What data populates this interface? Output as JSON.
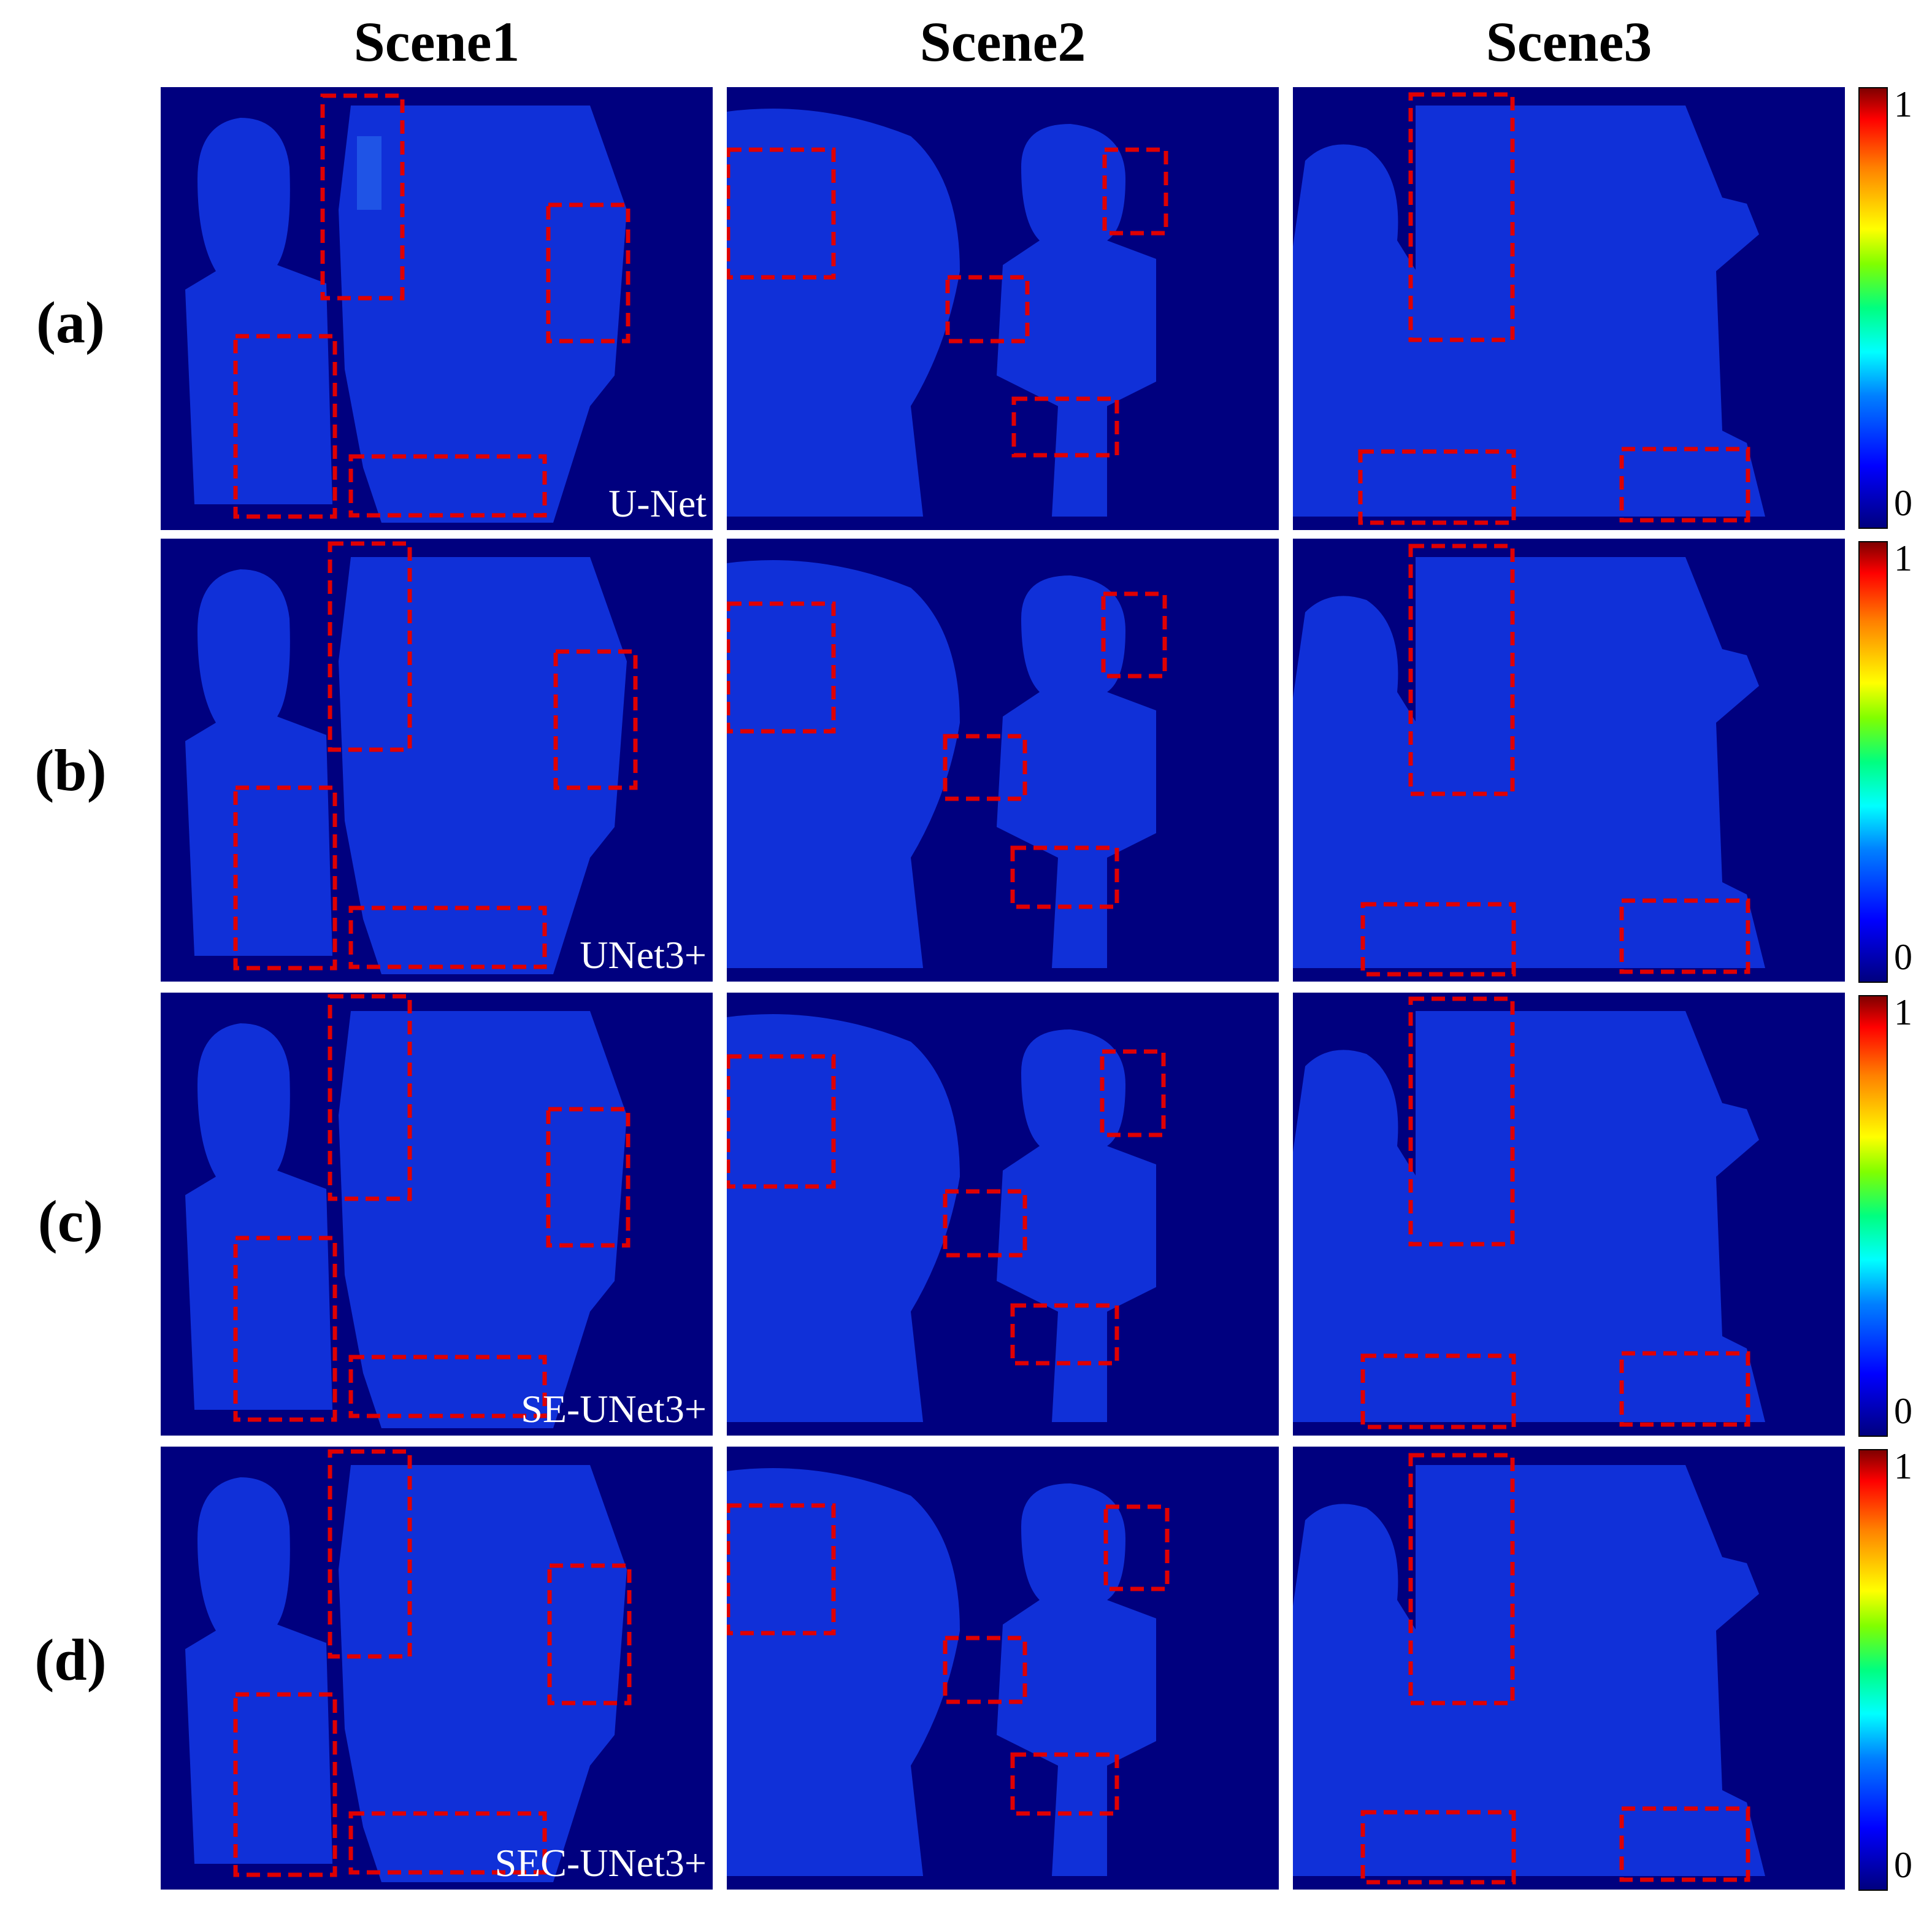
{
  "columns": [
    "Scene1",
    "Scene2",
    "Scene3"
  ],
  "rows": [
    {
      "label": "(a)",
      "method": "U-Net"
    },
    {
      "label": "(b)",
      "method": "UNet3+"
    },
    {
      "label": "(c)",
      "method": "SE-UNet3+"
    },
    {
      "label": "(d)",
      "method": "SEC-UNet3+"
    }
  ],
  "colorbar": {
    "max_label": "1",
    "min_label": "0",
    "colormap": "jet"
  },
  "colors": {
    "background": "#00007f",
    "highlight_box": "#e00000",
    "object_error": "#1030d8"
  }
}
